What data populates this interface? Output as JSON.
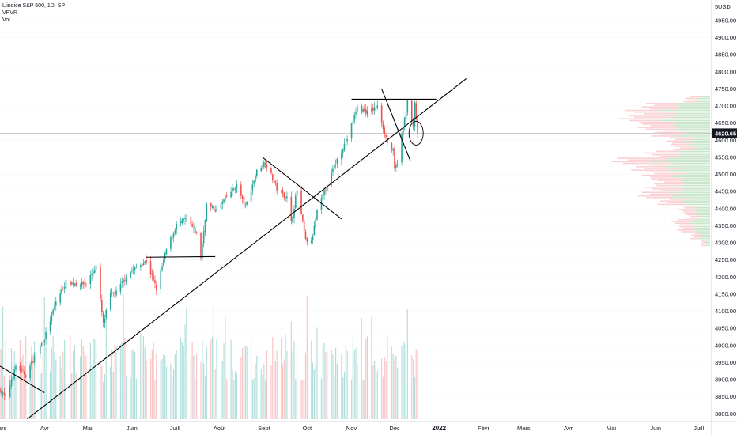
{
  "legend": {
    "symbol": "L'indice S&P 500, 1D, SP",
    "indicator_vpvr": "VPVR",
    "indicator_vol": "Vol"
  },
  "price_axis": {
    "currency": "USD",
    "last_price_label": "4620.65",
    "last_price_bg": "#131722"
  },
  "colors": {
    "up": "#26a69a",
    "down": "#ef5350",
    "volume_up": "#b2dfdb",
    "volume_down": "#f8c6c6",
    "vpvr_up": "#a5d6a7",
    "vpvr_down": "#f7b3b8",
    "trendline": "#000000",
    "grid": "#e0e3eb"
  },
  "chart_data": {
    "type": "candlestick",
    "ylim": [
      3780,
      5010
    ],
    "yticks": [
      3800,
      3850,
      3900,
      3950,
      4000,
      4050,
      4100,
      4150,
      4200,
      4250,
      4300,
      4350,
      4400,
      4450,
      4500,
      4550,
      4600,
      4650,
      4700,
      4750,
      4800,
      4850,
      4900,
      4950
    ],
    "ytick_labels": [
      "3800.00",
      "3850.00",
      "3900.00",
      "3950.00",
      "4000.00",
      "4050.00",
      "4100.00",
      "4150.00",
      "4200.00",
      "4250.00",
      "4300.00",
      "4350.00",
      "4400.00",
      "4450.00",
      "4500.00",
      "4550.00",
      "4600.00",
      "4650.00",
      "4700.00",
      "4750.00",
      "4800.00",
      "4850.00",
      "4900.00",
      "4950.00"
    ],
    "top_tick_label": "5",
    "xlim": [
      "2021-03-01",
      "2022-07-10"
    ],
    "xticks": [
      {
        "date": "2021-03-01",
        "label": "Mars",
        "bold": false
      },
      {
        "date": "2021-04-01",
        "label": "Avr",
        "bold": false
      },
      {
        "date": "2021-05-01",
        "label": "Mai",
        "bold": false
      },
      {
        "date": "2021-06-01",
        "label": "Juin",
        "bold": false
      },
      {
        "date": "2021-07-01",
        "label": "Juill",
        "bold": false
      },
      {
        "date": "2021-08-01",
        "label": "Août",
        "bold": false
      },
      {
        "date": "2021-09-01",
        "label": "Sept",
        "bold": false
      },
      {
        "date": "2021-10-01",
        "label": "Oct",
        "bold": false
      },
      {
        "date": "2021-11-01",
        "label": "Nov",
        "bold": false
      },
      {
        "date": "2021-12-01",
        "label": "Déc",
        "bold": false
      },
      {
        "date": "2022-01-01",
        "label": "2022",
        "bold": true
      },
      {
        "date": "2022-02-01",
        "label": "Févr",
        "bold": false
      },
      {
        "date": "2022-03-01",
        "label": "Mars",
        "bold": false
      },
      {
        "date": "2022-04-01",
        "label": "Avr",
        "bold": false
      },
      {
        "date": "2022-05-01",
        "label": "Mai",
        "bold": false
      },
      {
        "date": "2022-06-01",
        "label": "Juin",
        "bold": false
      },
      {
        "date": "2022-07-01",
        "label": "Juill",
        "bold": false
      }
    ],
    "last_price": 4620.65,
    "price_path": [
      [
        "2021-03-01",
        3870
      ],
      [
        "2021-03-05",
        3845
      ],
      [
        "2021-03-12",
        3940
      ],
      [
        "2021-03-19",
        3913
      ],
      [
        "2021-03-26",
        3975
      ],
      [
        "2021-04-01",
        4020
      ],
      [
        "2021-04-09",
        4128
      ],
      [
        "2021-04-16",
        4185
      ],
      [
        "2021-04-23",
        4180
      ],
      [
        "2021-04-30",
        4181
      ],
      [
        "2021-05-07",
        4232
      ],
      [
        "2021-05-12",
        4063
      ],
      [
        "2021-05-17",
        4150
      ],
      [
        "2021-05-21",
        4155
      ],
      [
        "2021-05-28",
        4204
      ],
      [
        "2021-06-04",
        4229
      ],
      [
        "2021-06-11",
        4247
      ],
      [
        "2021-06-18",
        4166
      ],
      [
        "2021-06-25",
        4280
      ],
      [
        "2021-07-02",
        4352
      ],
      [
        "2021-07-09",
        4370
      ],
      [
        "2021-07-16",
        4327
      ],
      [
        "2021-07-19",
        4258
      ],
      [
        "2021-07-23",
        4411
      ],
      [
        "2021-07-30",
        4395
      ],
      [
        "2021-08-06",
        4436
      ],
      [
        "2021-08-13",
        4468
      ],
      [
        "2021-08-19",
        4405
      ],
      [
        "2021-08-27",
        4509
      ],
      [
        "2021-09-02",
        4537
      ],
      [
        "2021-09-10",
        4458
      ],
      [
        "2021-09-17",
        4432
      ],
      [
        "2021-09-20",
        4358
      ],
      [
        "2021-09-24",
        4455
      ],
      [
        "2021-09-30",
        4307
      ],
      [
        "2021-10-04",
        4300
      ],
      [
        "2021-10-08",
        4391
      ],
      [
        "2021-10-15",
        4471
      ],
      [
        "2021-10-22",
        4544
      ],
      [
        "2021-10-29",
        4605
      ],
      [
        "2021-11-05",
        4697
      ],
      [
        "2021-11-12",
        4682
      ],
      [
        "2021-11-19",
        4697
      ],
      [
        "2021-11-26",
        4594
      ],
      [
        "2021-11-30",
        4567
      ],
      [
        "2021-12-01",
        4513
      ],
      [
        "2021-12-03",
        4538
      ],
      [
        "2021-12-10",
        4712
      ],
      [
        "2021-12-14",
        4634
      ],
      [
        "2021-12-15",
        4709
      ],
      [
        "2021-12-17",
        4620
      ]
    ],
    "volume_ylim": [
      0,
      3200
    ],
    "vpvr_profile": [
      [
        4720,
        0.2
      ],
      [
        4700,
        0.55
      ],
      [
        4680,
        0.65
      ],
      [
        4660,
        0.7
      ],
      [
        4640,
        0.55
      ],
      [
        4620,
        0.45
      ],
      [
        4600,
        0.35
      ],
      [
        4580,
        0.3
      ],
      [
        4560,
        0.5
      ],
      [
        4540,
        0.75
      ],
      [
        4520,
        0.6
      ],
      [
        4500,
        0.55
      ],
      [
        4480,
        0.45
      ],
      [
        4460,
        0.5
      ],
      [
        4440,
        0.55
      ],
      [
        4420,
        0.4
      ],
      [
        4400,
        0.25
      ],
      [
        4380,
        0.2
      ],
      [
        4360,
        0.3
      ],
      [
        4340,
        0.25
      ],
      [
        4320,
        0.15
      ],
      [
        4300,
        0.08
      ]
    ],
    "trendlines": [
      {
        "name": "long-uptrend",
        "from": [
          "2021-03-20",
          3785
        ],
        "to": [
          "2022-01-20",
          4780
        ]
      },
      {
        "name": "march-resistance",
        "from": [
          "2021-03-01",
          3940
        ],
        "to": [
          "2021-04-01",
          3862
        ]
      },
      {
        "name": "july-range",
        "from": [
          "2021-06-11",
          4258
        ],
        "to": [
          "2021-07-29",
          4260
        ]
      },
      {
        "name": "sept-downtrend",
        "from": [
          "2021-08-31",
          4550
        ],
        "to": [
          "2021-10-25",
          4370
        ]
      },
      {
        "name": "nov-top",
        "from": [
          "2021-11-01",
          4720
        ],
        "to": [
          "2021-12-30",
          4720
        ]
      },
      {
        "name": "dec-fall",
        "from": [
          "2021-11-22",
          4750
        ],
        "to": [
          "2021-12-12",
          4540
        ]
      }
    ]
  }
}
